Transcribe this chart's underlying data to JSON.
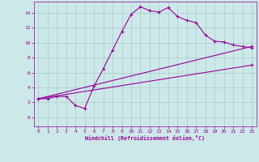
{
  "xlabel": "Windchill (Refroidissement éolien,°C)",
  "bg_color": "#cce8e8",
  "line_color": "#990099",
  "grid_color": "#aacccc",
  "xlim": [
    -0.5,
    23.5
  ],
  "ylim": [
    -1.2,
    15.5
  ],
  "xticks": [
    0,
    1,
    2,
    3,
    4,
    5,
    6,
    7,
    8,
    9,
    10,
    11,
    12,
    13,
    14,
    15,
    16,
    17,
    18,
    19,
    20,
    21,
    22,
    23
  ],
  "yticks": [
    0,
    2,
    4,
    6,
    8,
    10,
    12,
    14
  ],
  "series1_x": [
    0,
    1,
    2,
    3,
    4,
    5,
    6,
    7,
    8,
    9,
    10,
    11,
    12,
    13,
    14,
    15,
    16,
    17,
    18,
    19,
    20,
    21,
    22,
    23
  ],
  "series1_y": [
    2.5,
    2.5,
    2.8,
    2.8,
    1.6,
    1.2,
    4.2,
    6.5,
    9.0,
    11.5,
    13.8,
    14.8,
    14.3,
    14.1,
    14.7,
    13.5,
    13.0,
    12.7,
    11.0,
    10.2,
    10.1,
    9.7,
    9.5,
    9.3
  ],
  "series2_x": [
    0,
    23
  ],
  "series2_y": [
    2.5,
    7.0
  ],
  "series3_x": [
    0,
    23
  ],
  "series3_y": [
    2.5,
    9.5
  ],
  "marker": "+"
}
